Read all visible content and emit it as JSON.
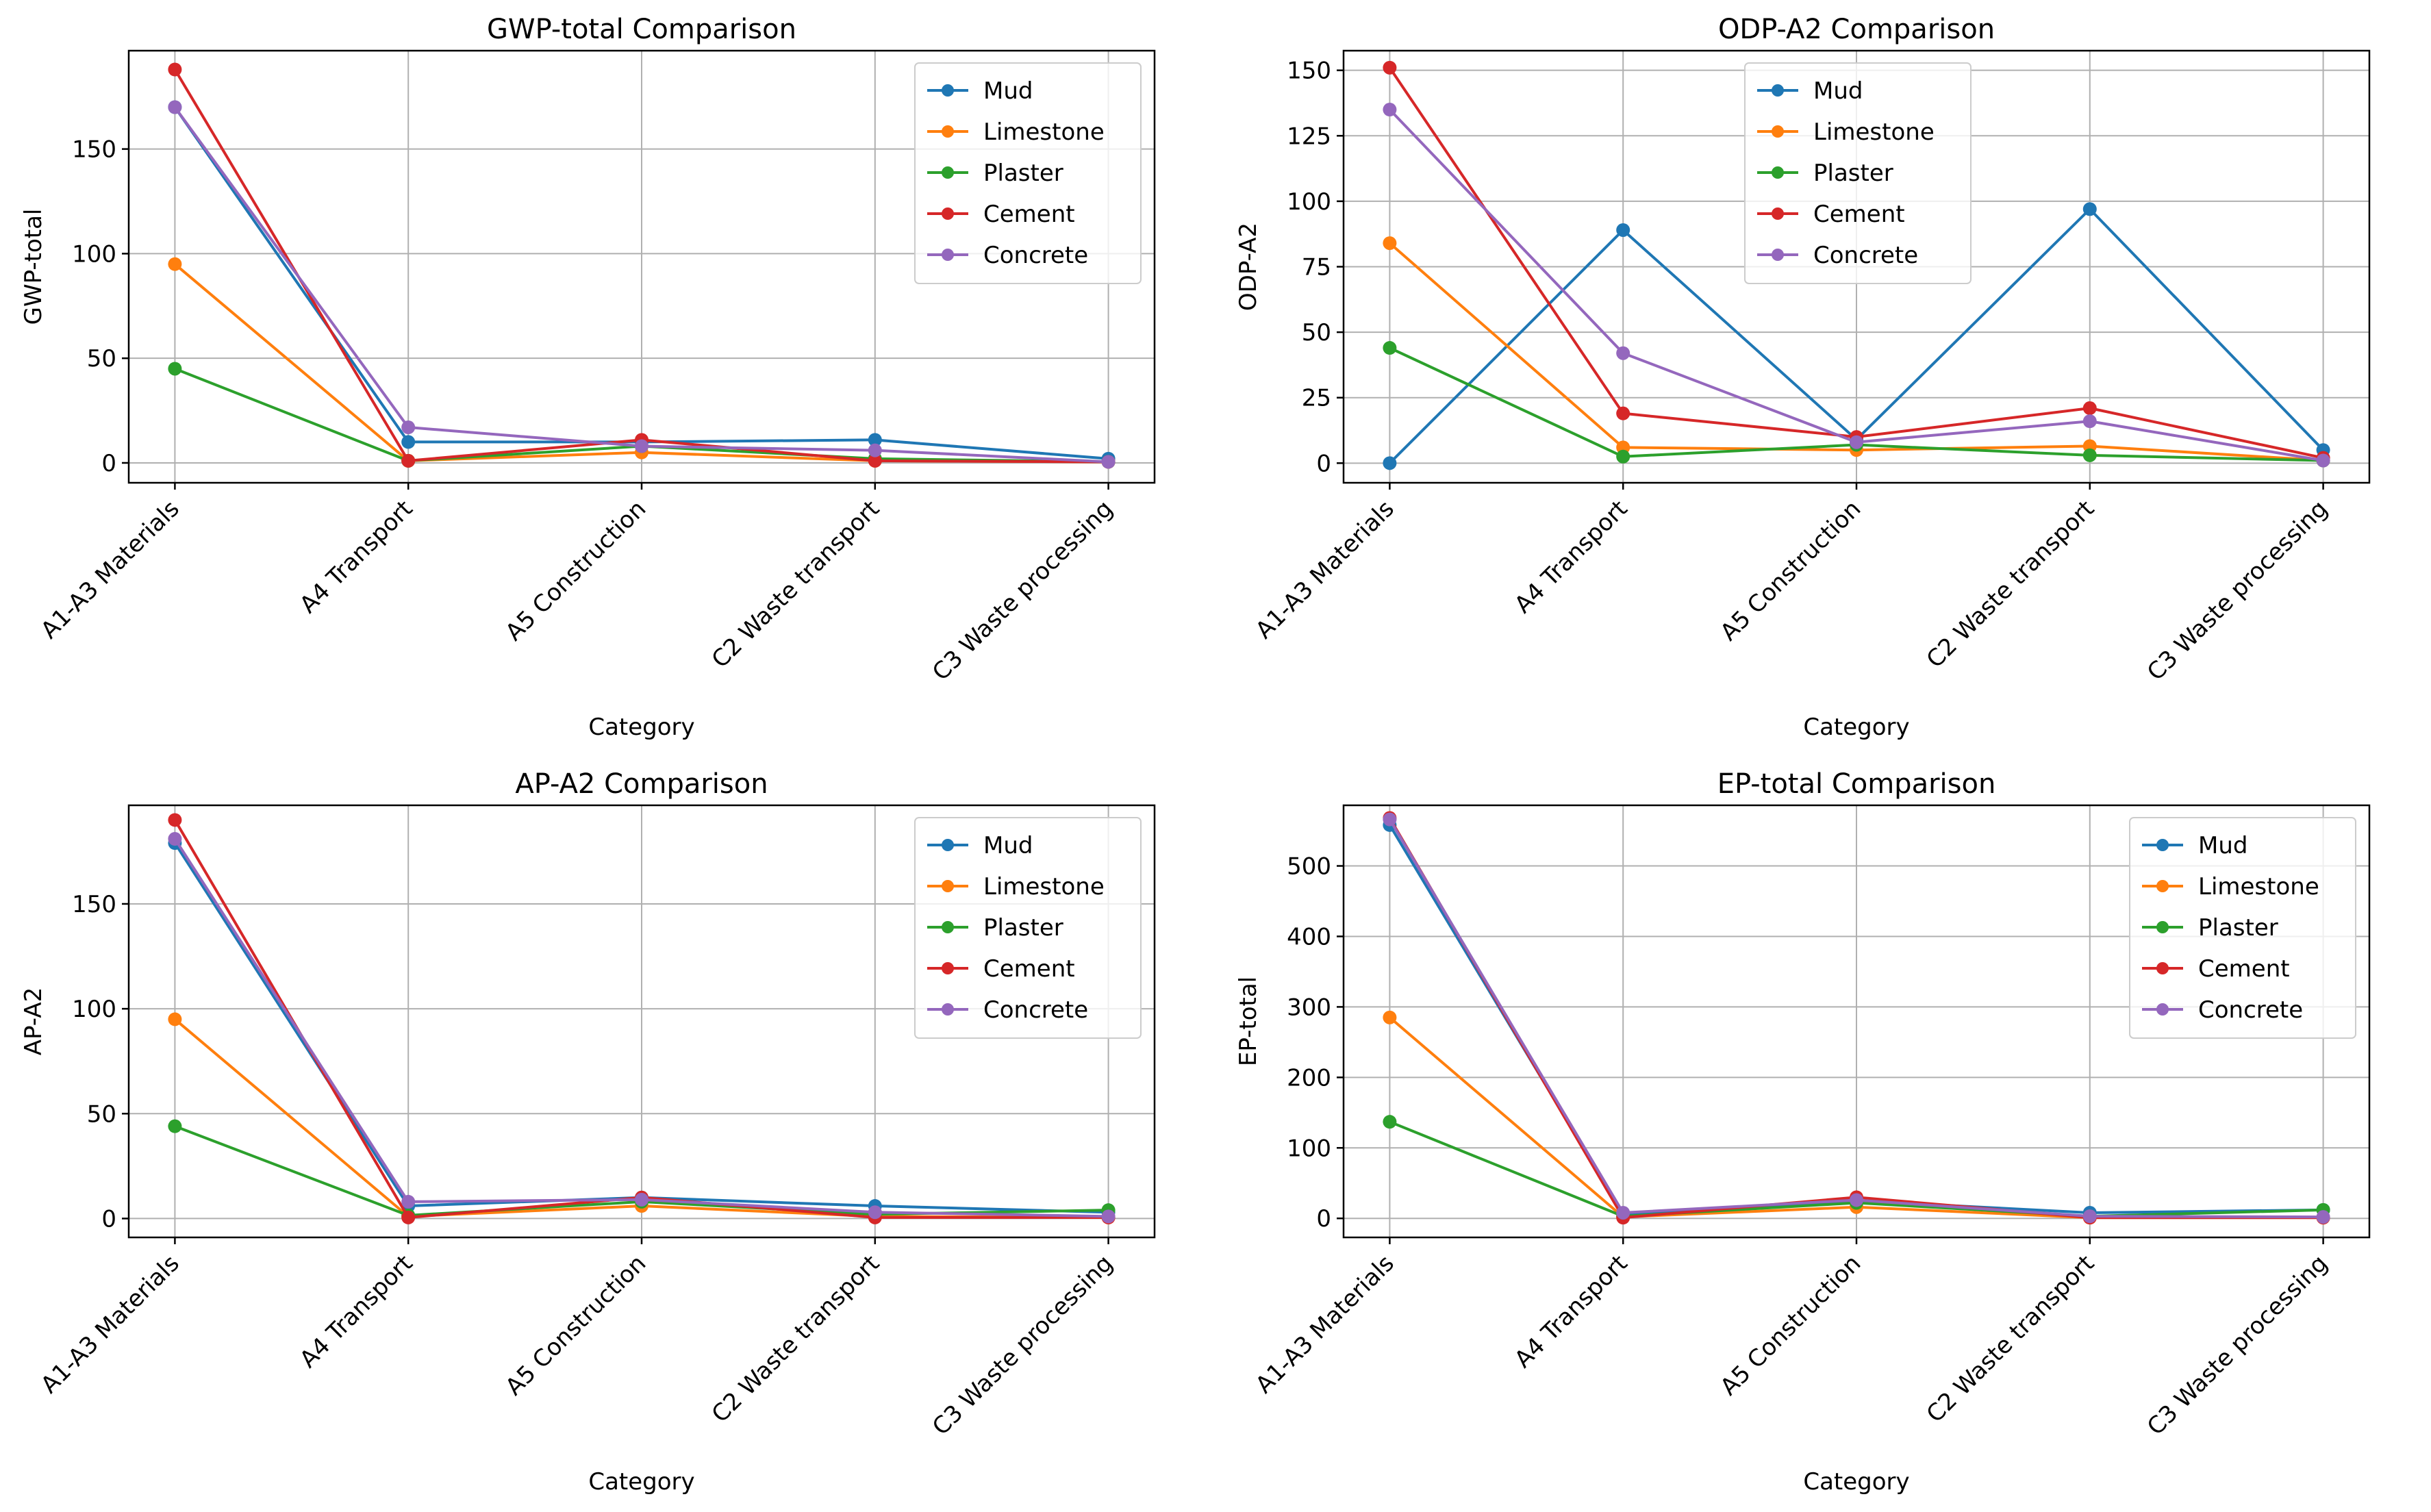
{
  "figure": {
    "background": "#ffffff"
  },
  "chart_data": [
    {
      "type": "line",
      "title": "GWP-total Comparison",
      "xlabel": "Category",
      "ylabel": "GWP-total",
      "categories": [
        "A1-A3 Materials",
        "A4 Transport",
        "A5 Construction",
        "C2 Waste transport",
        "C3 Waste processing"
      ],
      "ylim": [
        -9.5,
        197
      ],
      "yticks": [
        0,
        50,
        100,
        150
      ],
      "grid": true,
      "legend_position": "upper right",
      "series": [
        {
          "name": "Mud",
          "color": "#1f77b4",
          "values": [
            170,
            10,
            10,
            11,
            2
          ]
        },
        {
          "name": "Limestone",
          "color": "#ff7f0e",
          "values": [
            95,
            1,
            5,
            1,
            0.5
          ]
        },
        {
          "name": "Plaster",
          "color": "#2ca02c",
          "values": [
            45,
            1,
            8,
            2,
            0.5
          ]
        },
        {
          "name": "Cement",
          "color": "#d62728",
          "values": [
            188,
            1,
            11,
            1,
            0.5
          ]
        },
        {
          "name": "Concrete",
          "color": "#9467bd",
          "values": [
            170,
            17,
            8,
            6,
            0.5
          ]
        }
      ]
    },
    {
      "type": "line",
      "title": "ODP-A2 Comparison",
      "xlabel": "Category",
      "ylabel": "ODP-A2",
      "categories": [
        "A1-A3 Materials",
        "A4 Transport",
        "A5 Construction",
        "C2 Waste transport",
        "C3 Waste processing"
      ],
      "ylim": [
        -7.5,
        157.5
      ],
      "yticks": [
        0,
        25,
        50,
        75,
        100,
        125,
        150
      ],
      "grid": true,
      "legend_position": "upper center",
      "series": [
        {
          "name": "Mud",
          "color": "#1f77b4",
          "values": [
            0,
            89,
            9,
            97,
            5
          ]
        },
        {
          "name": "Limestone",
          "color": "#ff7f0e",
          "values": [
            84,
            6,
            5,
            6.5,
            1
          ]
        },
        {
          "name": "Plaster",
          "color": "#2ca02c",
          "values": [
            44,
            2.5,
            7,
            3,
            1
          ]
        },
        {
          "name": "Cement",
          "color": "#d62728",
          "values": [
            151,
            19,
            10,
            21,
            2
          ]
        },
        {
          "name": "Concrete",
          "color": "#9467bd",
          "values": [
            135,
            42,
            8,
            16,
            1
          ]
        }
      ]
    },
    {
      "type": "line",
      "title": "AP-A2 Comparison",
      "xlabel": "Category",
      "ylabel": "AP-A2",
      "categories": [
        "A1-A3 Materials",
        "A4 Transport",
        "A5 Construction",
        "C2 Waste transport",
        "C3 Waste processing"
      ],
      "ylim": [
        -9,
        197
      ],
      "yticks": [
        0,
        50,
        100,
        150
      ],
      "grid": true,
      "legend_position": "upper right",
      "series": [
        {
          "name": "Mud",
          "color": "#1f77b4",
          "values": [
            179,
            6,
            10,
            6,
            3
          ]
        },
        {
          "name": "Limestone",
          "color": "#ff7f0e",
          "values": [
            95,
            1,
            6,
            1,
            0.5
          ]
        },
        {
          "name": "Plaster",
          "color": "#2ca02c",
          "values": [
            44,
            1.5,
            8,
            2,
            4
          ]
        },
        {
          "name": "Cement",
          "color": "#d62728",
          "values": [
            190,
            0.5,
            10,
            0.5,
            0.5
          ]
        },
        {
          "name": "Concrete",
          "color": "#9467bd",
          "values": [
            181,
            8,
            9,
            3,
            1
          ]
        }
      ]
    },
    {
      "type": "line",
      "title": "EP-total Comparison",
      "xlabel": "Category",
      "ylabel": "EP-total",
      "categories": [
        "A1-A3 Materials",
        "A4 Transport",
        "A5 Construction",
        "C2 Waste transport",
        "C3 Waste processing"
      ],
      "ylim": [
        -27,
        586
      ],
      "yticks": [
        0,
        100,
        200,
        300,
        400,
        500
      ],
      "grid": true,
      "legend_position": "upper right",
      "series": [
        {
          "name": "Mud",
          "color": "#1f77b4",
          "values": [
            558,
            6,
            25,
            8,
            12
          ]
        },
        {
          "name": "Limestone",
          "color": "#ff7f0e",
          "values": [
            285,
            2,
            16,
            1,
            1
          ]
        },
        {
          "name": "Plaster",
          "color": "#2ca02c",
          "values": [
            137,
            3,
            22,
            3,
            12
          ]
        },
        {
          "name": "Cement",
          "color": "#d62728",
          "values": [
            568,
            1,
            30,
            1,
            1
          ]
        },
        {
          "name": "Concrete",
          "color": "#9467bd",
          "values": [
            566,
            8,
            26,
            3,
            2
          ]
        }
      ]
    }
  ]
}
